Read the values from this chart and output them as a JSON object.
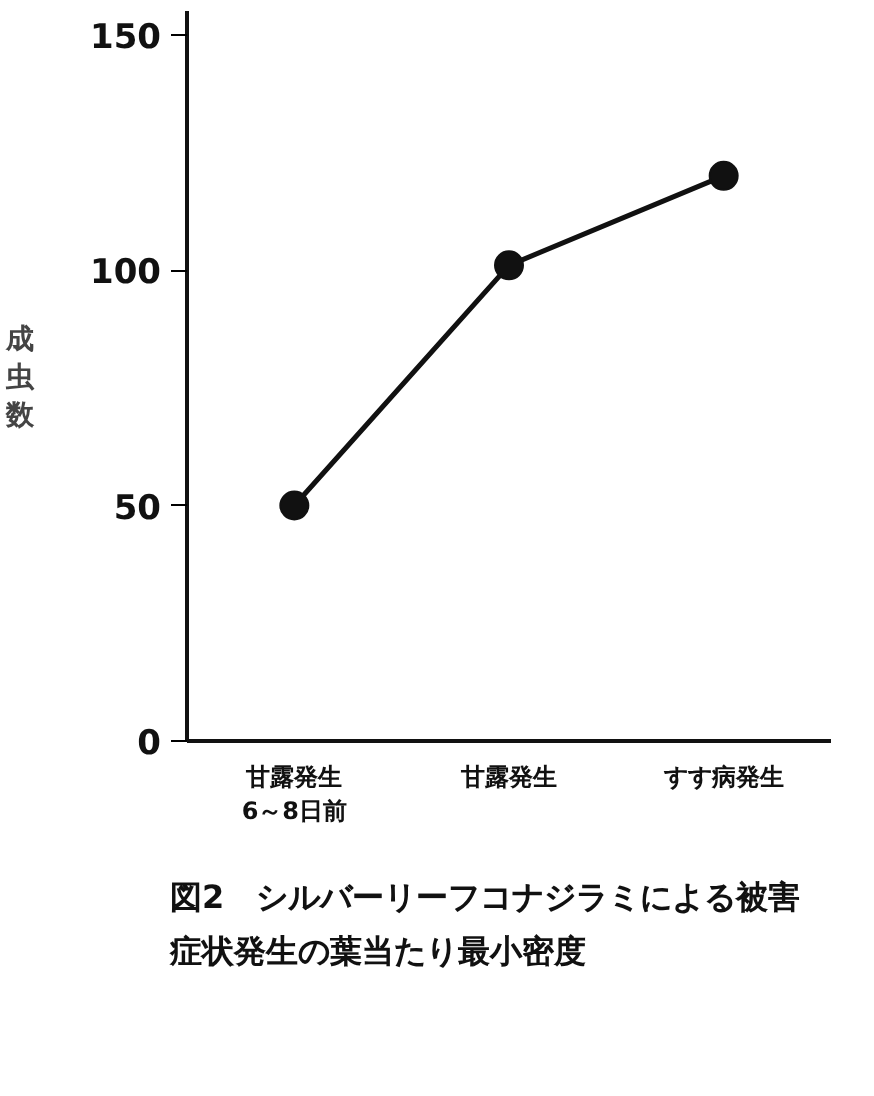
{
  "chart_data": {
    "type": "line",
    "ylabel": "成虫数",
    "categories": [
      "甘露発生\n6～8日前",
      "甘露発生",
      "すす病発生"
    ],
    "series": [
      {
        "color": "#111111",
        "values": [
          50,
          101,
          120
        ]
      }
    ],
    "marker": "circle",
    "line_style": "solid",
    "ylim": [
      0,
      155
    ],
    "yticks": [
      0,
      50,
      100,
      150
    ],
    "grid": false,
    "annotations": [
      "図2　シルバーリーフコナジラミによる被害症状発生の葉当たり最小密度"
    ]
  }
}
